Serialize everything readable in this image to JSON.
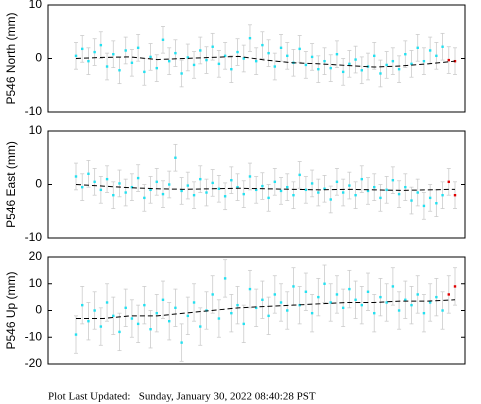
{
  "chart_data": [
    {
      "type": "errorbar",
      "ylabel": "P546 North (mm)",
      "ylim": [
        -10,
        10
      ],
      "yticks": [
        -10,
        0,
        10
      ],
      "color": "#22e0f0",
      "error_color": "#cccccc",
      "error": 2.5,
      "values": [
        0.5,
        1.8,
        -0.5,
        1.2,
        2.5,
        -1.5,
        0.8,
        -2.2,
        1.5,
        -0.8,
        2.0,
        -2.5,
        0.3,
        -1.8,
        3.5,
        -0.5,
        1.0,
        -2.8,
        0.2,
        -1.2,
        1.5,
        -0.3,
        2.2,
        -1.0,
        0.5,
        -2.0,
        1.2,
        0.0,
        3.8,
        -0.5,
        2.5,
        1.0,
        -1.5,
        2.0,
        0.5,
        -0.8,
        1.8,
        -1.2,
        0.3,
        -2.0,
        -0.5,
        -1.8,
        0.8,
        -2.5,
        -1.0,
        -0.2,
        -2.2,
        -1.5,
        0.5,
        -2.8,
        -1.2,
        -0.5,
        -2.0,
        0.8,
        -1.0,
        2.0,
        -0.5,
        1.5,
        0.5,
        2.2
      ],
      "latest": {
        "color": "#e00000",
        "values": [
          -0.3,
          -0.5
        ]
      },
      "trend": {
        "color": "#000000",
        "values": [
          0,
          0.2,
          0.3,
          -0.2,
          0,
          0.2,
          0.4,
          -0.3,
          -0.8,
          -1.0,
          -1.3,
          -1.6,
          -1.4,
          -1.0,
          -0.5
        ]
      }
    },
    {
      "type": "errorbar",
      "ylabel": "P546 East (mm)",
      "ylim": [
        -10,
        10
      ],
      "yticks": [
        -10,
        0,
        10
      ],
      "color": "#22e0f0",
      "error_color": "#cccccc",
      "error": 2.5,
      "values": [
        1.5,
        -0.5,
        2.0,
        0.5,
        -1.0,
        1.0,
        -2.0,
        0.2,
        -1.5,
        -0.5,
        1.2,
        -2.5,
        -1.0,
        0.5,
        -1.8,
        0.0,
        5.0,
        -1.2,
        -0.2,
        -2.0,
        1.0,
        -1.5,
        0.3,
        -0.8,
        -2.2,
        0.8,
        -0.5,
        -1.8,
        1.5,
        -1.0,
        -0.3,
        -2.5,
        0.5,
        -1.2,
        -0.5,
        -2.0,
        1.8,
        -1.0,
        0.2,
        -1.5,
        -0.8,
        -2.8,
        0.5,
        -1.5,
        -0.2,
        -2.0,
        1.0,
        -1.2,
        -0.5,
        -2.5,
        -1.0,
        0.8,
        -1.8,
        -0.5,
        -3.0,
        -1.5,
        -4.0,
        -2.5,
        -3.5,
        -2.0
      ],
      "latest": {
        "color": "#e00000",
        "values": [
          0.5,
          -2.0
        ]
      },
      "trend": {
        "color": "#000000",
        "values": [
          0,
          -0.3,
          -0.6,
          -0.8,
          -0.9,
          -0.8,
          -0.7,
          -0.8,
          -0.9,
          -1.0,
          -0.9,
          -1.0,
          -1.1,
          -1.0,
          -0.9
        ]
      }
    },
    {
      "type": "errorbar",
      "ylabel": "P546 Up (mm)",
      "ylim": [
        -20,
        20
      ],
      "yticks": [
        -20,
        -10,
        0,
        10,
        20
      ],
      "color": "#22e0f0",
      "error_color": "#cccccc",
      "error": 7,
      "values": [
        -9,
        2,
        -4,
        0,
        -6,
        3,
        -2,
        -8,
        1,
        -3,
        -5,
        2,
        -7,
        -1,
        4,
        -4,
        1,
        -12,
        -2,
        3,
        -6,
        0,
        6,
        -3,
        12,
        -1,
        2,
        -5,
        8,
        1,
        4,
        -2,
        6,
        3,
        0,
        9,
        2,
        7,
        -1,
        5,
        10,
        3,
        6,
        1,
        8,
        4,
        2,
        7,
        -1,
        5,
        3,
        9,
        0,
        4,
        2,
        6,
        -1,
        3,
        5,
        0
      ],
      "latest": {
        "color": "#e00000",
        "values": [
          6,
          9
        ]
      },
      "trend": {
        "color": "#000000",
        "values": [
          -3,
          -3,
          -2,
          -2,
          -1,
          0,
          1,
          1.5,
          2,
          2.5,
          3,
          3,
          3.5,
          3.5,
          4
        ]
      }
    }
  ],
  "footer": "Plot Last Updated:   Sunday, January 30, 2022 08:40:28 PST"
}
